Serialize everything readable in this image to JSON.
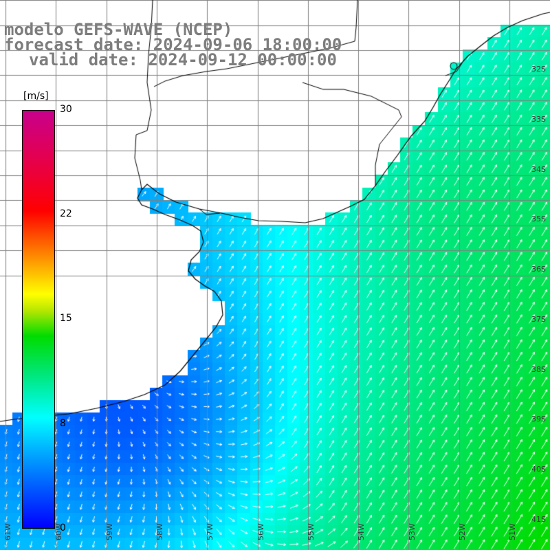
{
  "titles": {
    "line1": "modelo GEFS-WAVE (NCEP)",
    "line2": "forecast date: 2024-09-06 18:00:00",
    "line3": "valid date: 2024-09-12 00:00:00"
  },
  "colorbar": {
    "units": "[m/s]",
    "ticks": [
      "30",
      "22",
      "15",
      "8",
      "0"
    ],
    "colors": [
      "#0000ff",
      "#0096ff",
      "#00ffff",
      "#00dc00",
      "#ffff00",
      "#ff0000",
      "#c8008c"
    ]
  },
  "lat_labels": [
    "32S",
    "33S",
    "34S",
    "35S",
    "36S",
    "37S",
    "38S",
    "39S",
    "40S",
    "41S"
  ],
  "lon_labels": [
    "61W",
    "60W",
    "59W",
    "58W",
    "57W",
    "56W",
    "55W",
    "54W",
    "53W",
    "52W",
    "51W"
  ],
  "colors": {
    "land": "#ffffff",
    "grid": "#7f7f7f",
    "coast": "#000000",
    "arrows": "#ffffff"
  }
}
